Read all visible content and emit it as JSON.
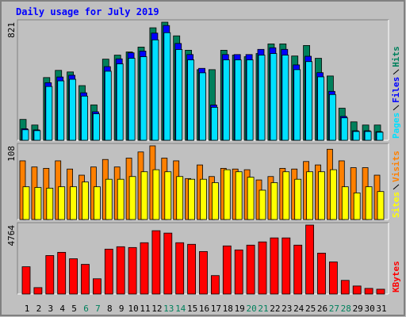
{
  "chart_data": [
    {
      "type": "bar",
      "title": "Daily usage for July 2019",
      "ylim": [
        0,
        821
      ],
      "yticks": [
        821
      ],
      "series": [
        {
          "name": "Pages",
          "color": "#00e0ff",
          "values": [
            73,
            67,
            374,
            413,
            424,
            307,
            184,
            480,
            531,
            570,
            581,
            698,
            748,
            631,
            559,
            469,
            229,
            559,
            559,
            559,
            592,
            603,
            592,
            491,
            547,
            441,
            318,
            156,
            61,
            61,
            56
          ]
        },
        {
          "name": "Files",
          "color": "#0000ff",
          "values": [
            80,
            72,
            400,
            440,
            452,
            330,
            198,
            512,
            566,
            608,
            620,
            745,
            798,
            673,
            596,
            500,
            245,
            596,
            596,
            596,
            632,
            643,
            632,
            524,
            584,
            470,
            340,
            166,
            66,
            66,
            60
          ]
        },
        {
          "name": "Hits",
          "color": "#00805c",
          "values": [
            145,
            106,
            436,
            486,
            475,
            380,
            246,
            564,
            592,
            614,
            648,
            782,
            821,
            726,
            626,
            491,
            491,
            626,
            592,
            581,
            603,
            670,
            670,
            586,
            659,
            570,
            447,
            223,
            128,
            106,
            106
          ]
        }
      ]
    },
    {
      "type": "bar",
      "ylim": [
        0,
        108
      ],
      "yticks": [
        108
      ],
      "series": [
        {
          "name": "Sites",
          "color": "#ffff00",
          "values": [
            48,
            47,
            46,
            48,
            48,
            55,
            48,
            59,
            59,
            63,
            70,
            73,
            70,
            63,
            59,
            59,
            54,
            73,
            70,
            62,
            43,
            54,
            70,
            59,
            70,
            70,
            73,
            48,
            39,
            48,
            41
          ]
        },
        {
          "name": "Visits",
          "color": "#ff8000",
          "values": [
            86,
            77,
            75,
            86,
            74,
            65,
            77,
            88,
            77,
            90,
            99,
            108,
            90,
            86,
            60,
            80,
            63,
            75,
            74,
            73,
            58,
            63,
            75,
            74,
            85,
            80,
            103,
            86,
            76,
            76,
            65
          ]
        }
      ]
    },
    {
      "type": "bar",
      "ylim": [
        0,
        4764
      ],
      "yticks": [
        4764
      ],
      "categories": [
        "1",
        "2",
        "3",
        "4",
        "5",
        "6",
        "7",
        "8",
        "9",
        "10",
        "11",
        "12",
        "13",
        "14",
        "15",
        "16",
        "17",
        "18",
        "19",
        "20",
        "21",
        "22",
        "23",
        "24",
        "25",
        "26",
        "27",
        "28",
        "29",
        "30",
        "31"
      ],
      "category_colors": [
        "#000000",
        "#000000",
        "#000000",
        "#000000",
        "#000000",
        "#00805c",
        "#00805c",
        "#000000",
        "#000000",
        "#000000",
        "#000000",
        "#000000",
        "#00805c",
        "#00805c",
        "#000000",
        "#000000",
        "#000000",
        "#000000",
        "#000000",
        "#00805c",
        "#00805c",
        "#000000",
        "#000000",
        "#000000",
        "#000000",
        "#000000",
        "#00805c",
        "#00805c",
        "#000000",
        "#000000",
        "#000000"
      ],
      "series": [
        {
          "name": "KBytes",
          "color": "#ff0000",
          "values": [
            1884,
            443,
            2659,
            2881,
            2437,
            2050,
            1053,
            3102,
            3268,
            3213,
            3545,
            4376,
            4210,
            3545,
            3435,
            2936,
            1274,
            3324,
            3047,
            3379,
            3601,
            3878,
            3878,
            3379,
            4764,
            2825,
            2216,
            942,
            554,
            388,
            332
          ]
        }
      ]
    }
  ]
}
